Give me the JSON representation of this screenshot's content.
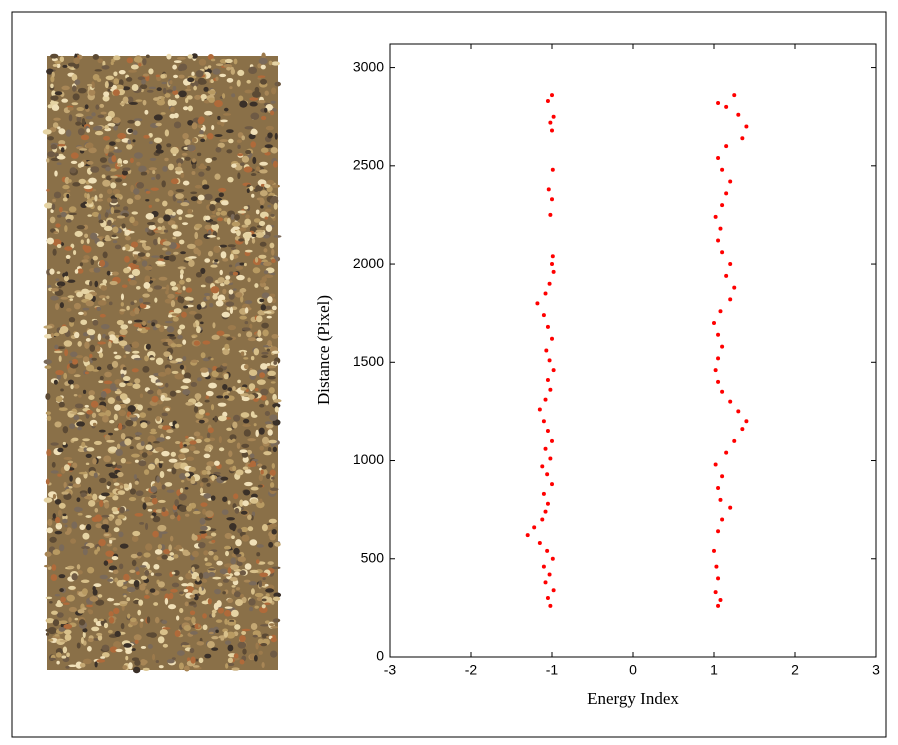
{
  "chart_data": {
    "type": "scatter",
    "xlabel": "Energy Index",
    "ylabel": "Distance (Pixel)",
    "color": "#ff0000",
    "xlim": [
      -3,
      3
    ],
    "ylim": [
      0,
      3120
    ],
    "xticks": [
      -3,
      -2,
      -1,
      0,
      1,
      2,
      3
    ],
    "yticks": [
      0,
      500,
      1000,
      1500,
      2000,
      2500,
      3000
    ],
    "x": [
      -1.02,
      -1.05,
      -0.98,
      -1.08,
      -1.03,
      -1.1,
      -0.99,
      -1.06,
      -1.15,
      -1.3,
      -1.22,
      -1.12,
      -1.08,
      -1.05,
      -1.1,
      -1.0,
      -1.06,
      -1.12,
      -1.02,
      -1.08,
      -1.0,
      -1.05,
      -1.1,
      -1.15,
      -1.08,
      -1.02,
      -1.05,
      -0.98,
      -1.03,
      -1.07,
      -1.0,
      -1.05,
      -1.1,
      -1.18,
      -1.08,
      -1.03,
      -0.98,
      -1.0,
      -0.99,
      -1.02,
      -1.0,
      -1.04,
      -0.99,
      -1.0,
      -1.02,
      -0.98,
      -1.05,
      -1.0,
      1.05,
      1.08,
      1.02,
      1.05,
      1.03,
      1.0,
      1.05,
      1.1,
      1.2,
      1.08,
      1.05,
      1.1,
      1.02,
      1.15,
      1.25,
      1.35,
      1.4,
      1.3,
      1.2,
      1.1,
      1.05,
      1.02,
      1.05,
      1.1,
      1.05,
      1.0,
      1.08,
      1.2,
      1.25,
      1.15,
      1.2,
      1.1,
      1.05,
      1.08,
      1.02,
      1.1,
      1.15,
      1.2,
      1.1,
      1.05,
      1.15,
      1.35,
      1.4,
      1.3,
      1.15,
      1.25,
      1.05
    ],
    "values": [
      260,
      300,
      340,
      380,
      420,
      460,
      500,
      540,
      580,
      620,
      660,
      700,
      740,
      780,
      830,
      880,
      930,
      970,
      1010,
      1060,
      1100,
      1150,
      1200,
      1260,
      1310,
      1360,
      1410,
      1460,
      1510,
      1560,
      1620,
      1680,
      1740,
      1800,
      1850,
      1900,
      1960,
      2000,
      2040,
      2250,
      2330,
      2380,
      2480,
      2680,
      2720,
      2750,
      2830,
      2860,
      260,
      290,
      330,
      400,
      460,
      540,
      640,
      700,
      760,
      800,
      860,
      920,
      980,
      1040,
      1100,
      1160,
      1200,
      1250,
      1300,
      1350,
      1400,
      1460,
      1520,
      1580,
      1640,
      1700,
      1760,
      1820,
      1880,
      1940,
      2000,
      2060,
      2120,
      2180,
      2240,
      2300,
      2360,
      2420,
      2480,
      2540,
      2600,
      2640,
      2700,
      2760,
      2800,
      2860,
      2820
    ]
  }
}
